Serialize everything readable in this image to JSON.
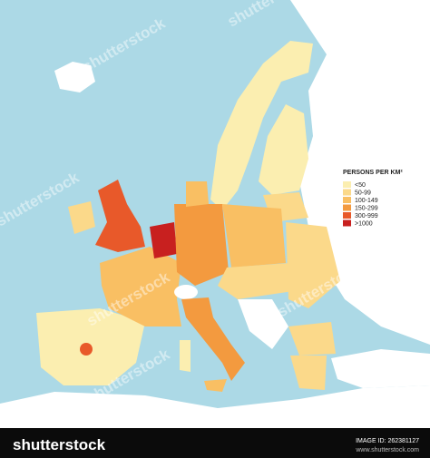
{
  "legend": {
    "title": "PERSONS PER KM²",
    "items": [
      {
        "label": "<50",
        "color": "#fbeeb0"
      },
      {
        "label": "50-99",
        "color": "#fbd98a"
      },
      {
        "label": "100-149",
        "color": "#f9bf63"
      },
      {
        "label": "150-299",
        "color": "#f39a3f"
      },
      {
        "label": "300-999",
        "color": "#e8592a"
      },
      {
        "label": ">1000",
        "color": "#c8201f"
      }
    ]
  },
  "watermark": "shutterstock",
  "footer": {
    "brand": "shutterstock",
    "image_id": "IMAGE ID: 262381127",
    "site": "www.shutterstock.com"
  }
}
